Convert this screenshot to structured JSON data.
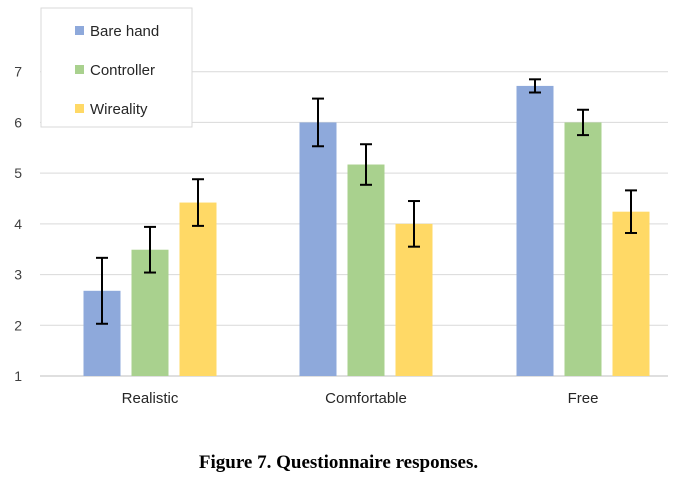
{
  "caption": "Figure 7. Questionnaire responses.",
  "chart_data": {
    "type": "bar",
    "categories": [
      "Realistic",
      "Comfortable",
      "Free"
    ],
    "series": [
      {
        "name": "Bare hand",
        "color": "#8EA9DB",
        "values": [
          2.68,
          6.0,
          6.72
        ],
        "error": [
          0.65,
          0.47,
          0.13
        ]
      },
      {
        "name": "Controller",
        "color": "#A9D18E",
        "values": [
          3.49,
          5.17,
          6.0
        ],
        "error": [
          0.45,
          0.4,
          0.25
        ]
      },
      {
        "name": "Wireality",
        "color": "#FFD966",
        "values": [
          4.42,
          4.0,
          4.24
        ],
        "error": [
          0.46,
          0.45,
          0.42
        ]
      }
    ],
    "yticks": [
      1,
      2,
      3,
      4,
      5,
      6,
      7
    ],
    "ylim": [
      1,
      8
    ],
    "grid": true,
    "legend": "top-left",
    "xlabel": "",
    "ylabel": ""
  }
}
